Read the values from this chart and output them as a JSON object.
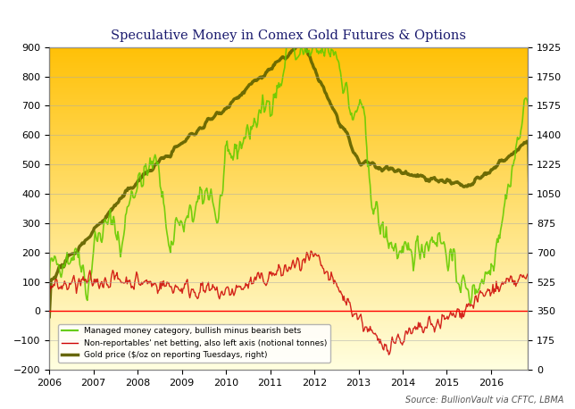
{
  "title": "Speculative Money in Comex Gold Futures & Options",
  "source": "Source: BullionVault via CFTC, LBMA",
  "left_ylim": [
    -200,
    900
  ],
  "right_ylim": [
    0,
    1925
  ],
  "left_yticks": [
    -200,
    -100,
    0,
    100,
    200,
    300,
    400,
    500,
    600,
    700,
    800,
    900
  ],
  "right_yticks": [
    0,
    175,
    350,
    525,
    700,
    875,
    1050,
    1225,
    1400,
    1575,
    1750,
    1925
  ],
  "xlim_start": 2006.0,
  "xlim_end": 2016.83,
  "xtick_years": [
    2006,
    2007,
    2008,
    2009,
    2010,
    2011,
    2012,
    2013,
    2014,
    2015,
    2016
  ],
  "bg_color_top": "#FFC107",
  "bg_color_bottom": "#FFFFE0",
  "grid_color": "#aaaaaa",
  "line_managed_color": "#66CC00",
  "line_unreportable_color": "#CC0000",
  "line_gold_color": "#666600",
  "legend_items": [
    {
      "label": "Managed money category, bullish minus bearish bets",
      "color": "#66CC00",
      "lw": 1.5
    },
    {
      "label": "Non-reportables' net betting, also left axis (notional tonnes)",
      "color": "#CC0000",
      "lw": 1.0
    },
    {
      "label": "Gold price ($/oz on reporting Tuesdays, right)",
      "color": "#666600",
      "lw": 2.5
    }
  ]
}
